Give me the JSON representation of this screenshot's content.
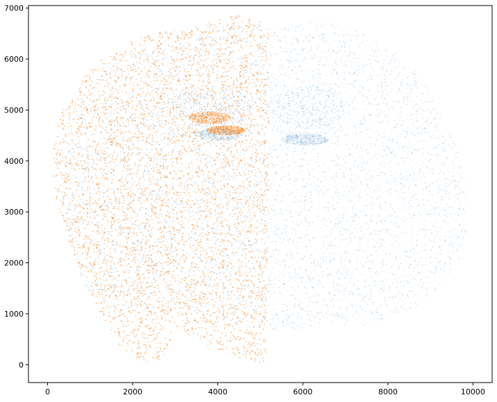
{
  "chart_data": {
    "type": "scatter",
    "title": "",
    "xlabel": "",
    "ylabel": "",
    "xlim": [
      -450,
      10450
    ],
    "ylim": [
      -350,
      7050
    ],
    "xticks": [
      0,
      2000,
      4000,
      6000,
      8000,
      10000
    ],
    "yticks": [
      0,
      1000,
      2000,
      3000,
      4000,
      5000,
      6000,
      7000
    ],
    "grid": false,
    "legend": "none",
    "colors": {
      "series_a": "#1f77b4",
      "series_b": "#ff7f0e"
    },
    "series": [
      {
        "color": "#1f77b4",
        "marker_opacity": 0.12,
        "outline": [
          [
            1200,
            1100
          ],
          [
            900,
            1500
          ],
          [
            520,
            2300
          ],
          [
            350,
            3300
          ],
          [
            420,
            4300
          ],
          [
            700,
            5100
          ],
          [
            1100,
            5650
          ],
          [
            1600,
            6000
          ],
          [
            2300,
            6350
          ],
          [
            3000,
            6600
          ],
          [
            3700,
            6680
          ],
          [
            4400,
            6700
          ],
          [
            5000,
            6650
          ],
          [
            5300,
            6580
          ],
          [
            5700,
            6720
          ],
          [
            6300,
            6780
          ],
          [
            7000,
            6650
          ],
          [
            7800,
            6350
          ],
          [
            8600,
            5850
          ],
          [
            9200,
            5100
          ],
          [
            9600,
            4300
          ],
          [
            9850,
            3500
          ],
          [
            9880,
            2800
          ],
          [
            9700,
            2100
          ],
          [
            9300,
            1600
          ],
          [
            8600,
            1100
          ],
          [
            7800,
            820
          ],
          [
            7200,
            750
          ],
          [
            6600,
            820
          ],
          [
            6000,
            700
          ],
          [
            5500,
            650
          ],
          [
            5150,
            700
          ],
          [
            4600,
            760
          ],
          [
            4000,
            900
          ],
          [
            3300,
            1000
          ],
          [
            2600,
            1050
          ],
          [
            2000,
            1020
          ],
          [
            1500,
            1060
          ]
        ],
        "dense_bands": [
          {
            "cx": 3900,
            "cy": 5050,
            "rx": 900,
            "ry": 420
          },
          {
            "cx": 6100,
            "cy": 5050,
            "rx": 900,
            "ry": 420
          },
          {
            "cx": 4000,
            "cy": 4520,
            "rx": 550,
            "ry": 120
          },
          {
            "cx": 6050,
            "cy": 4420,
            "rx": 550,
            "ry": 120
          }
        ]
      },
      {
        "color": "#ff7f0e",
        "marker_opacity": 0.28,
        "outline": [
          [
            2400,
            30
          ],
          [
            2000,
            150
          ],
          [
            1500,
            550
          ],
          [
            1150,
            1200
          ],
          [
            800,
            1800
          ],
          [
            450,
            2500
          ],
          [
            180,
            3300
          ],
          [
            120,
            4300
          ],
          [
            350,
            5000
          ],
          [
            800,
            5600
          ],
          [
            1400,
            6100
          ],
          [
            2200,
            6450
          ],
          [
            3000,
            6620
          ],
          [
            3800,
            6720
          ],
          [
            4500,
            6880
          ],
          [
            5000,
            6750
          ],
          [
            5200,
            6500
          ],
          [
            5180,
            5600
          ],
          [
            5200,
            4200
          ],
          [
            5180,
            2800
          ],
          [
            5150,
            1500
          ],
          [
            5150,
            30
          ],
          [
            4700,
            80
          ],
          [
            4000,
            250
          ],
          [
            3400,
            550
          ],
          [
            3000,
            750
          ],
          [
            2900,
            400
          ],
          [
            2700,
            100
          ]
        ],
        "dense_bands": [
          {
            "cx": 3800,
            "cy": 4850,
            "rx": 500,
            "ry": 120
          },
          {
            "cx": 4200,
            "cy": 4600,
            "rx": 450,
            "ry": 90
          }
        ]
      }
    ]
  }
}
